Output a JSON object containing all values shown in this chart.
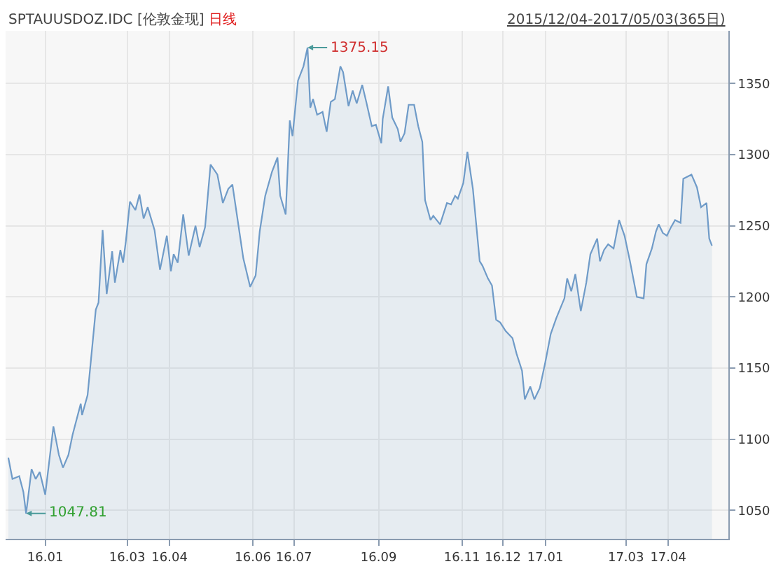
{
  "chart_data": {
    "type": "area",
    "title": "SPTAUUSDOZ.IDC [伦敦金现]",
    "subtitle": "日线",
    "annotations": [
      "2015/12/04-2017/05/03(365日)",
      {
        "text": "1375.15",
        "x": "2016-07-11",
        "y": 1375.15
      },
      {
        "text": "1047.81",
        "x": "2015-12-18",
        "y": 1047.81
      }
    ],
    "series": [
      {
        "color": "#6f9bc8",
        "x": [
          "2015-12-05",
          "2015-12-08",
          "2015-12-13",
          "2015-12-16",
          "2015-12-18",
          "2015-12-22",
          "2015-12-25",
          "2015-12-28",
          "2016-01-01",
          "2016-01-07",
          "2016-01-11",
          "2016-01-14",
          "2016-01-18",
          "2016-01-21",
          "2016-01-27",
          "2016-01-28",
          "2016-02-01",
          "2016-02-07",
          "2016-02-09",
          "2016-02-12",
          "2016-02-15",
          "2016-02-19",
          "2016-02-21",
          "2016-02-25",
          "2016-02-27",
          "2016-02-29",
          "2016-03-03",
          "2016-03-07",
          "2016-03-10",
          "2016-03-13",
          "2016-03-16",
          "2016-03-21",
          "2016-03-25",
          "2016-03-30",
          "2016-04-02",
          "2016-04-04",
          "2016-04-07",
          "2016-04-11",
          "2016-04-15",
          "2016-04-20",
          "2016-04-23",
          "2016-04-27",
          "2016-05-01",
          "2016-05-06",
          "2016-05-10",
          "2016-05-14",
          "2016-05-17",
          "2016-05-21",
          "2016-05-25",
          "2016-05-30",
          "2016-06-03",
          "2016-06-06",
          "2016-06-10",
          "2016-06-15",
          "2016-06-19",
          "2016-06-21",
          "2016-06-25",
          "2016-06-28",
          "2016-06-30",
          "2016-07-04",
          "2016-07-08",
          "2016-07-11",
          "2016-07-13",
          "2016-07-15",
          "2016-07-18",
          "2016-07-22",
          "2016-07-25",
          "2016-07-28",
          "2016-07-31",
          "2016-08-04",
          "2016-08-06",
          "2016-08-10",
          "2016-08-13",
          "2016-08-16",
          "2016-08-20",
          "2016-08-23",
          "2016-08-27",
          "2016-08-30",
          "2016-09-03",
          "2016-09-04",
          "2016-09-08",
          "2016-09-11",
          "2016-09-15",
          "2016-09-17",
          "2016-09-20",
          "2016-09-23",
          "2016-09-27",
          "2016-09-30",
          "2016-10-03",
          "2016-10-05",
          "2016-10-09",
          "2016-10-11",
          "2016-10-16",
          "2016-10-21",
          "2016-10-24",
          "2016-10-27",
          "2016-10-29",
          "2016-11-02",
          "2016-11-05",
          "2016-11-09",
          "2016-11-14",
          "2016-11-16",
          "2016-11-20",
          "2016-11-23",
          "2016-11-26",
          "2016-11-29",
          "2016-12-03",
          "2016-12-08",
          "2016-12-11",
          "2016-12-15",
          "2016-12-17",
          "2016-12-21",
          "2016-12-24",
          "2016-12-28",
          "2017-01-01",
          "2017-01-05",
          "2017-01-09",
          "2017-01-15",
          "2017-01-17",
          "2017-01-20",
          "2017-01-23",
          "2017-01-27",
          "2017-01-31",
          "2017-02-03",
          "2017-02-08",
          "2017-02-10",
          "2017-02-13",
          "2017-02-16",
          "2017-02-20",
          "2017-02-24",
          "2017-02-28",
          "2017-03-04",
          "2017-03-09",
          "2017-03-14",
          "2017-03-16",
          "2017-03-20",
          "2017-03-23",
          "2017-03-25",
          "2017-03-28",
          "2017-03-31",
          "2017-04-03",
          "2017-04-06",
          "2017-04-10",
          "2017-04-12",
          "2017-04-16",
          "2017-04-18",
          "2017-04-22",
          "2017-04-25",
          "2017-04-29",
          "2017-05-01",
          "2017-05-03"
        ],
        "values": [
          1087,
          1072,
          1074,
          1063,
          1047.81,
          1079,
          1072,
          1077,
          1061,
          1109,
          1089,
          1080,
          1089,
          1103,
          1125,
          1117,
          1131,
          1191,
          1196,
          1247,
          1202,
          1232,
          1210,
          1233,
          1224,
          1239,
          1267,
          1261,
          1272,
          1255,
          1263,
          1247,
          1219,
          1243,
          1218,
          1230,
          1224,
          1258,
          1229,
          1250,
          1235,
          1249,
          1293,
          1286,
          1266,
          1276,
          1279,
          1253,
          1227,
          1207,
          1215,
          1246,
          1271,
          1288,
          1298,
          1271,
          1258,
          1324,
          1313,
          1352,
          1362,
          1375.15,
          1333,
          1339,
          1328,
          1330,
          1316,
          1337,
          1339,
          1362,
          1358,
          1334,
          1345,
          1336,
          1349,
          1337,
          1320,
          1321,
          1308,
          1325,
          1348,
          1326,
          1318,
          1309,
          1315,
          1335,
          1335,
          1320,
          1309,
          1268,
          1254,
          1257,
          1251,
          1266,
          1265,
          1271,
          1269,
          1280,
          1302,
          1276,
          1225,
          1222,
          1213,
          1208,
          1184,
          1182,
          1176,
          1171,
          1160,
          1148,
          1128,
          1137,
          1128,
          1136,
          1154,
          1174,
          1185,
          1199,
          1213,
          1204,
          1216,
          1190,
          1210,
          1230,
          1241,
          1225,
          1233,
          1237,
          1234,
          1254,
          1243,
          1225,
          1200,
          1199,
          1223,
          1234,
          1246,
          1251,
          1245,
          1243,
          1249,
          1254,
          1252,
          1283,
          1285,
          1286,
          1277,
          1263,
          1266,
          1241,
          1236
        ]
      }
    ],
    "xlim": [
      "2015-12-03",
      "2017-05-15"
    ],
    "ylim": [
      1030,
      1387
    ],
    "xticks": [
      {
        "value": "2016-01-01",
        "label": "16.01"
      },
      {
        "value": "2016-03-01",
        "label": "16.03"
      },
      {
        "value": "2016-04-01",
        "label": "16.04"
      },
      {
        "value": "2016-06-01",
        "label": "16.06"
      },
      {
        "value": "2016-07-01",
        "label": "16.07"
      },
      {
        "value": "2016-09-01",
        "label": "16.09"
      },
      {
        "value": "2016-11-01",
        "label": "16.11"
      },
      {
        "value": "2016-12-01",
        "label": "16.12"
      },
      {
        "value": "2017-01-01",
        "label": "17.01"
      },
      {
        "value": "2017-03-01",
        "label": "17.03"
      },
      {
        "value": "2017-04-01",
        "label": "17.04"
      }
    ],
    "yticks": [
      1050,
      1100,
      1150,
      1200,
      1250,
      1300,
      1350
    ],
    "grid": true
  }
}
